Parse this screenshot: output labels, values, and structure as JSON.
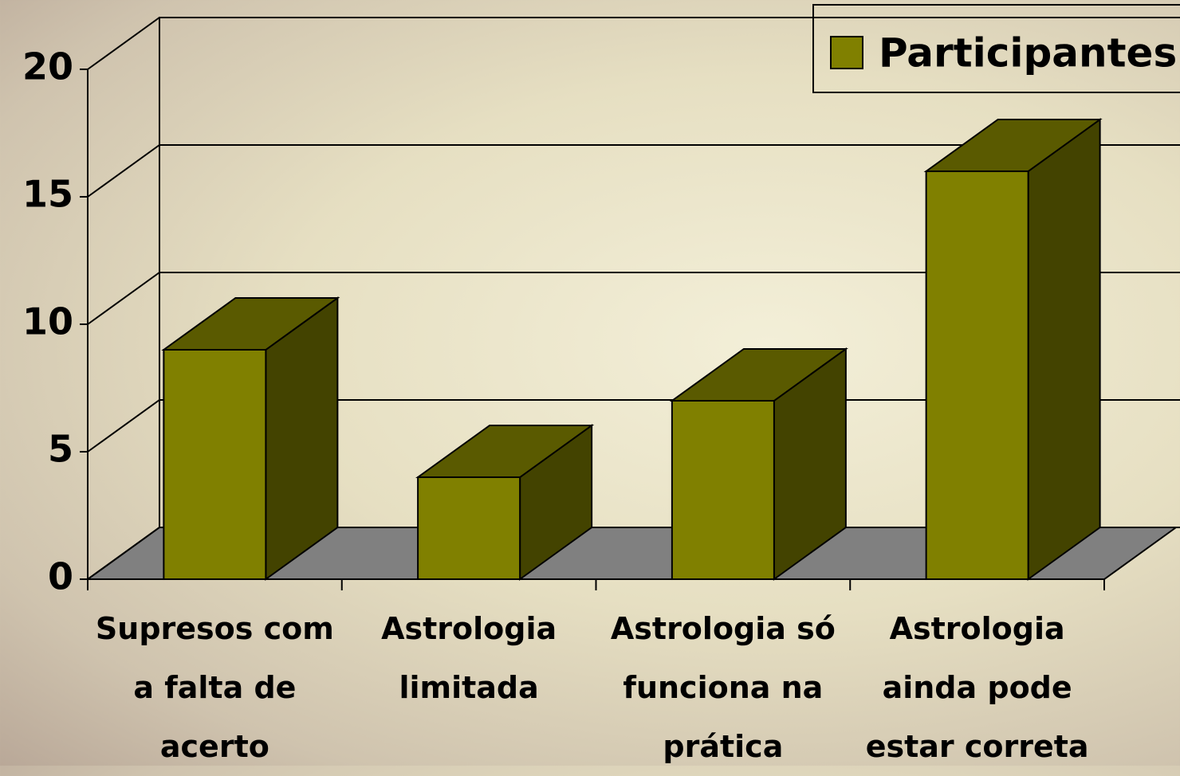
{
  "chart_data": {
    "type": "bar",
    "categories": [
      "Supresos com a falta de acerto",
      "Astrologia limitada",
      "Astrologia só funciona na prática",
      "Astrologia ainda pode estar correta"
    ],
    "series": [
      {
        "name": "Participantes",
        "color": "#808000",
        "values": [
          9,
          4,
          7,
          16
        ]
      }
    ],
    "ylim": [
      0,
      20
    ],
    "yticks": [
      0,
      5,
      10,
      15,
      20
    ],
    "grid": true,
    "legend": "top-right"
  }
}
